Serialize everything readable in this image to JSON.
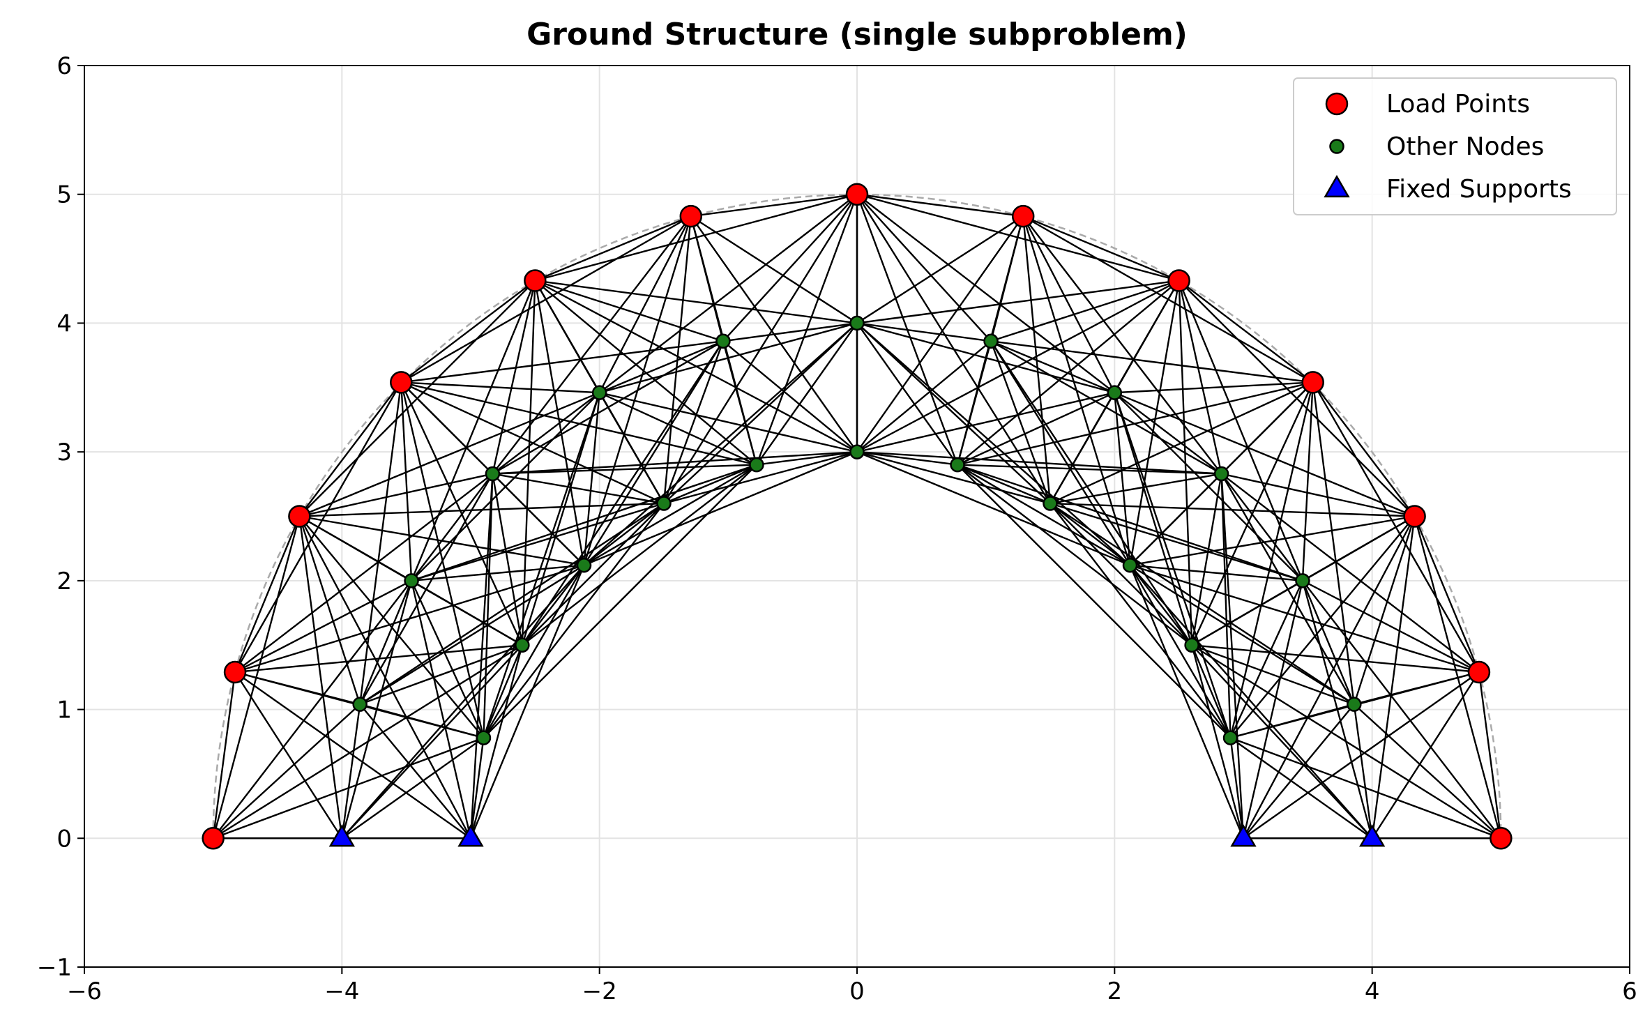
{
  "chart_data": {
    "type": "scatter",
    "title": "Ground Structure (single subproblem)",
    "xlabel": "",
    "ylabel": "",
    "xlim": [
      -6,
      6
    ],
    "ylim": [
      -1,
      6
    ],
    "x_ticks": [
      -6,
      -4,
      -2,
      0,
      2,
      4,
      6
    ],
    "y_ticks": [
      -1,
      0,
      1,
      2,
      3,
      4,
      5,
      6
    ],
    "x_tick_labels": [
      "−6",
      "−4",
      "−2",
      "0",
      "2",
      "4",
      "6"
    ],
    "y_tick_labels": [
      "−1",
      "0",
      "1",
      "2",
      "3",
      "4",
      "5",
      "6"
    ],
    "grid": true,
    "legend_position": "top-right",
    "guide_arc": {
      "center": [
        0,
        0
      ],
      "radius": 5,
      "style": "dashed",
      "color": "#aaaaaa"
    },
    "series": [
      {
        "name": "Load Points",
        "marker": "circle",
        "color": "#ff0000",
        "points": [
          [
            -5.0,
            0.0
          ],
          [
            -4.83,
            1.29
          ],
          [
            -4.33,
            2.5
          ],
          [
            -3.54,
            3.54
          ],
          [
            -2.5,
            4.33
          ],
          [
            -1.29,
            4.83
          ],
          [
            0.0,
            5.0
          ],
          [
            1.29,
            4.83
          ],
          [
            2.5,
            4.33
          ],
          [
            3.54,
            3.54
          ],
          [
            4.33,
            2.5
          ],
          [
            4.83,
            1.29
          ],
          [
            5.0,
            0.0
          ]
        ]
      },
      {
        "name": "Other Nodes",
        "marker": "circle",
        "color": "#1a7a1a",
        "points": [
          [
            -3.86,
            1.04
          ],
          [
            -3.46,
            2.0
          ],
          [
            -2.83,
            2.83
          ],
          [
            -2.0,
            3.46
          ],
          [
            -1.04,
            3.86
          ],
          [
            0.0,
            4.0
          ],
          [
            1.04,
            3.86
          ],
          [
            2.0,
            3.46
          ],
          [
            2.83,
            2.83
          ],
          [
            3.46,
            2.0
          ],
          [
            3.86,
            1.04
          ],
          [
            -2.9,
            0.78
          ],
          [
            -2.6,
            1.5
          ],
          [
            -2.12,
            2.12
          ],
          [
            -1.5,
            2.6
          ],
          [
            -0.78,
            2.9
          ],
          [
            0.0,
            3.0
          ],
          [
            0.78,
            2.9
          ],
          [
            1.5,
            2.6
          ],
          [
            2.12,
            2.12
          ],
          [
            2.6,
            1.5
          ],
          [
            2.9,
            0.78
          ]
        ]
      },
      {
        "name": "Fixed Supports",
        "marker": "triangle",
        "color": "#0000ff",
        "points": [
          [
            -4.0,
            0.0
          ],
          [
            -3.0,
            0.0
          ],
          [
            3.0,
            0.0
          ],
          [
            4.0,
            0.0
          ]
        ]
      }
    ],
    "members": {
      "color": "#000000",
      "description": "bars connect nodes within a neighbourhood of the ground structure",
      "max_length": 3.0
    }
  }
}
